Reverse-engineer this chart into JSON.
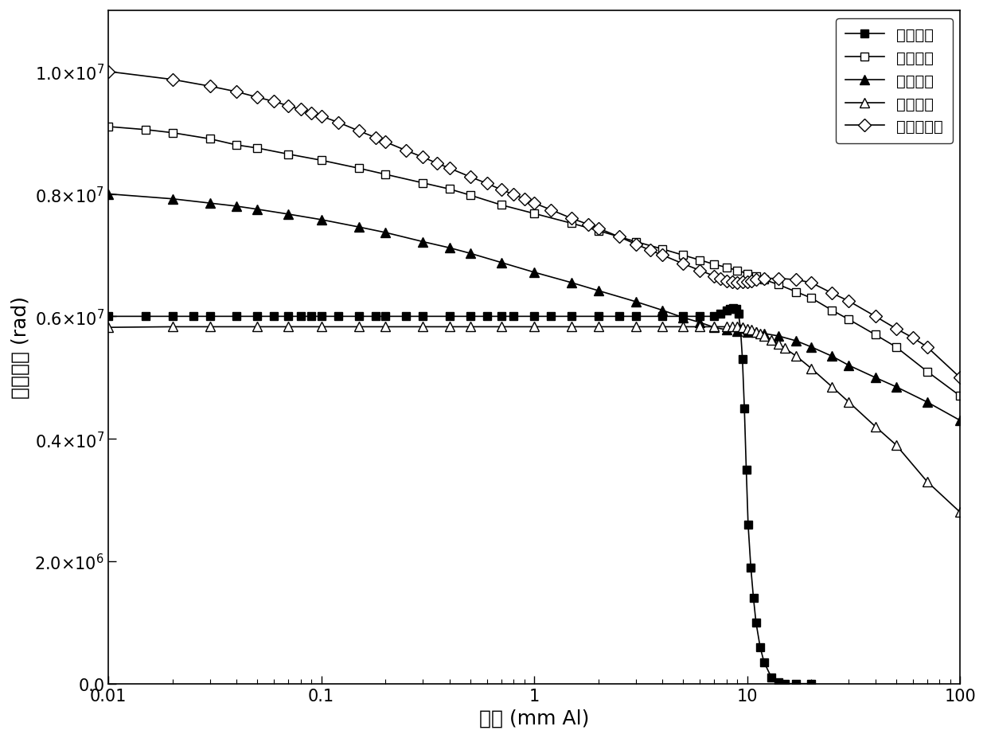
{
  "title": "",
  "xlabel": "厚度 (mm Al)",
  "ylabel": "吸收剂量 (rad)",
  "xlim_log": [
    0.01,
    100
  ],
  "ylim": [
    0,
    11000000.0
  ],
  "yticks": [
    0,
    2000000,
    4000000,
    6000000,
    8000000,
    10000000
  ],
  "series": {
    "trapped_electrons": {
      "label": "信获电子",
      "marker": "s",
      "mfc": "black",
      "x": [
        0.01,
        0.015,
        0.02,
        0.025,
        0.03,
        0.04,
        0.05,
        0.06,
        0.07,
        0.08,
        0.09,
        0.1,
        0.12,
        0.15,
        0.18,
        0.2,
        0.25,
        0.3,
        0.4,
        0.5,
        0.6,
        0.7,
        0.8,
        1.0,
        1.2,
        1.5,
        2.0,
        2.5,
        3.0,
        4.0,
        5.0,
        6.0,
        7.0,
        7.5,
        8.0,
        8.3,
        8.6,
        8.9,
        9.1,
        9.3,
        9.5,
        9.7,
        9.9,
        10.1,
        10.4,
        10.7,
        11.0,
        11.5,
        12.0,
        13.0,
        14.0,
        15.0,
        17.0,
        20.0
      ],
      "y": [
        6000000.0,
        6000000.0,
        6000000.0,
        6000000.0,
        6000000.0,
        6000000.0,
        6000000.0,
        6000000.0,
        6000000.0,
        6000000.0,
        6000000.0,
        6000000.0,
        6000000.0,
        6000000.0,
        6000000.0,
        6000000.0,
        6000000.0,
        6000000.0,
        6000000.0,
        6000000.0,
        6000000.0,
        6000000.0,
        6000000.0,
        6000000.0,
        6000000.0,
        6000000.0,
        6000000.0,
        6000000.0,
        6000000.0,
        6000000.0,
        6000000.0,
        6000000.0,
        6000000.0,
        6050000.0,
        6100000.0,
        6120000.0,
        6130000.0,
        6120000.0,
        6050000.0,
        5800000.0,
        5300000.0,
        4500000.0,
        3500000.0,
        2600000.0,
        1900000.0,
        1400000.0,
        1000000.0,
        600000.0,
        350000.0,
        100000.0,
        20000.0,
        0,
        0,
        0
      ]
    },
    "trapped_protons": {
      "label": "信获质子",
      "marker": "s",
      "mfc": "white",
      "x": [
        0.01,
        0.015,
        0.02,
        0.03,
        0.04,
        0.05,
        0.07,
        0.1,
        0.15,
        0.2,
        0.3,
        0.4,
        0.5,
        0.7,
        1.0,
        1.5,
        2.0,
        3.0,
        4.0,
        5.0,
        6.0,
        7.0,
        8.0,
        9.0,
        10.0,
        11.0,
        12.0,
        14.0,
        17.0,
        20.0,
        25.0,
        30.0,
        40.0,
        50.0,
        70.0,
        100.0
      ],
      "y": [
        9100000.0,
        9050000.0,
        9000000.0,
        8900000.0,
        8800000.0,
        8750000.0,
        8650000.0,
        8550000.0,
        8420000.0,
        8320000.0,
        8180000.0,
        8080000.0,
        7980000.0,
        7820000.0,
        7680000.0,
        7520000.0,
        7400000.0,
        7220000.0,
        7100000.0,
        7000000.0,
        6920000.0,
        6850000.0,
        6800000.0,
        6750000.0,
        6700000.0,
        6650000.0,
        6600000.0,
        6520000.0,
        6400000.0,
        6300000.0,
        6100000.0,
        5950000.0,
        5700000.0,
        5500000.0,
        5100000.0,
        4700000.0
      ]
    },
    "secondary_photons": {
      "label": "二次光子",
      "marker": "^",
      "mfc": "black",
      "x": [
        0.01,
        0.02,
        0.03,
        0.04,
        0.05,
        0.07,
        0.1,
        0.15,
        0.2,
        0.3,
        0.4,
        0.5,
        0.7,
        1.0,
        1.5,
        2.0,
        3.0,
        4.0,
        5.0,
        6.0,
        7.0,
        8.0,
        9.0,
        10.0,
        11.0,
        12.0,
        14.0,
        17.0,
        20.0,
        25.0,
        30.0,
        40.0,
        50.0,
        70.0,
        100.0
      ],
      "y": [
        8000000.0,
        7920000.0,
        7850000.0,
        7800000.0,
        7750000.0,
        7670000.0,
        7580000.0,
        7460000.0,
        7370000.0,
        7220000.0,
        7120000.0,
        7030000.0,
        6880000.0,
        6720000.0,
        6550000.0,
        6420000.0,
        6240000.0,
        6100000.0,
        5980000.0,
        5900000.0,
        5820000.0,
        5780000.0,
        5760000.0,
        5750000.0,
        5740000.0,
        5720000.0,
        5680000.0,
        5600000.0,
        5500000.0,
        5350000.0,
        5200000.0,
        5000000.0,
        4850000.0,
        4600000.0,
        4300000.0
      ]
    },
    "solar_protons": {
      "label": "太阳质子",
      "marker": "^",
      "mfc": "white",
      "x": [
        0.01,
        0.02,
        0.03,
        0.05,
        0.07,
        0.1,
        0.15,
        0.2,
        0.3,
        0.4,
        0.5,
        0.7,
        1.0,
        1.5,
        2.0,
        3.0,
        4.0,
        5.0,
        6.0,
        7.0,
        8.0,
        8.5,
        9.0,
        9.5,
        10.0,
        10.5,
        11.0,
        11.5,
        12.0,
        13.0,
        14.0,
        15.0,
        17.0,
        20.0,
        25.0,
        30.0,
        40.0,
        50.0,
        70.0,
        100.0
      ],
      "y": [
        5820000.0,
        5830000.0,
        5830000.0,
        5830000.0,
        5830000.0,
        5830000.0,
        5830000.0,
        5830000.0,
        5830000.0,
        5830000.0,
        5830000.0,
        5830000.0,
        5830000.0,
        5830000.0,
        5830000.0,
        5830000.0,
        5830000.0,
        5830000.0,
        5830000.0,
        5830000.0,
        5830000.0,
        5830000.0,
        5830000.0,
        5820000.0,
        5800000.0,
        5780000.0,
        5750000.0,
        5720000.0,
        5680000.0,
        5620000.0,
        5550000.0,
        5480000.0,
        5350000.0,
        5150000.0,
        4850000.0,
        4600000.0,
        4200000.0,
        3900000.0,
        3300000.0,
        2800000.0
      ]
    },
    "total_dose": {
      "label": "总吸收剂量",
      "marker": "D",
      "mfc": "white",
      "x": [
        0.01,
        0.02,
        0.03,
        0.04,
        0.05,
        0.06,
        0.07,
        0.08,
        0.09,
        0.1,
        0.12,
        0.15,
        0.18,
        0.2,
        0.25,
        0.3,
        0.35,
        0.4,
        0.5,
        0.6,
        0.7,
        0.8,
        0.9,
        1.0,
        1.2,
        1.5,
        1.8,
        2.0,
        2.5,
        3.0,
        3.5,
        4.0,
        5.0,
        6.0,
        7.0,
        7.5,
        8.0,
        8.5,
        9.0,
        9.5,
        10.0,
        10.5,
        11.0,
        12.0,
        14.0,
        17.0,
        20.0,
        25.0,
        30.0,
        40.0,
        50.0,
        60.0,
        70.0,
        100.0
      ],
      "y": [
        10000000.0,
        9870000.0,
        9760000.0,
        9670000.0,
        9580000.0,
        9510000.0,
        9440000.0,
        9380000.0,
        9320000.0,
        9270000.0,
        9170000.0,
        9030000.0,
        8920000.0,
        8850000.0,
        8710000.0,
        8600000.0,
        8500000.0,
        8420000.0,
        8280000.0,
        8170000.0,
        8070000.0,
        7990000.0,
        7920000.0,
        7850000.0,
        7740000.0,
        7600000.0,
        7500000.0,
        7440000.0,
        7300000.0,
        7180000.0,
        7080000.0,
        7000000.0,
        6860000.0,
        6750000.0,
        6660000.0,
        6620000.0,
        6580000.0,
        6560000.0,
        6550000.0,
        6560000.0,
        6570000.0,
        6580000.0,
        6600000.0,
        6620000.0,
        6620000.0,
        6600000.0,
        6550000.0,
        6380000.0,
        6250000.0,
        6000000.0,
        5800000.0,
        5650000.0,
        5500000.0,
        5000000.0
      ]
    }
  }
}
